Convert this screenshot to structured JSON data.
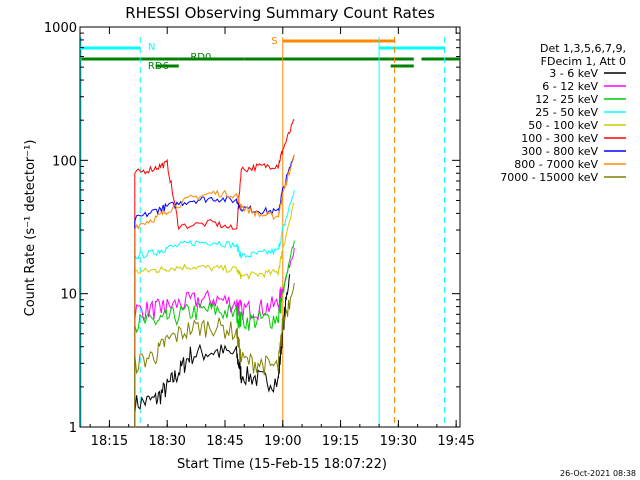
{
  "chart_data": {
    "type": "line",
    "title": "RHESSI Observing Summary Count Rates",
    "xlabel": "Start Time (15-Feb-15 18:07:22)",
    "ylabel": "Count Rate (s⁻¹ detector⁻¹)",
    "y_scale": "log",
    "ylim": [
      1,
      1000
    ],
    "xlim": [
      "18:07:22",
      "19:46:00"
    ],
    "x_tick_labels": [
      "18:15",
      "18:30",
      "18:45",
      "19:00",
      "19:15",
      "19:30",
      "19:45"
    ],
    "y_tick_labels": [
      "1",
      "10",
      "100",
      "1000"
    ],
    "timestamp": "26-Oct-2021 08:38",
    "legend": {
      "placement": "right",
      "header": [
        "Det 1,3,5,6,7,9,",
        "FDecim 1, Att 0"
      ],
      "entries": [
        {
          "label": "3 - 6 keV",
          "color": "#000000"
        },
        {
          "label": "6 - 12 keV",
          "color": "#ff00ff"
        },
        {
          "label": "12 - 25 keV",
          "color": "#00cc00"
        },
        {
          "label": "25 - 50 keV",
          "color": "#00ffff"
        },
        {
          "label": "50 - 100 keV",
          "color": "#cccc00"
        },
        {
          "label": "100 - 300 keV",
          "color": "#ff0000"
        },
        {
          "label": "300 - 800 keV",
          "color": "#0000ff"
        },
        {
          "label": "800 - 7000 keV",
          "color": "#ff8800"
        },
        {
          "label": "7000 - 15000 keV",
          "color": "#808000"
        }
      ]
    },
    "annotations": [
      {
        "label": "N",
        "color": "#00ffff"
      },
      {
        "label": "S",
        "color": "#ff8800"
      },
      {
        "label": "RD0",
        "color": "#008000"
      },
      {
        "label": "RD6",
        "color": "#008000"
      }
    ],
    "status_bars": {
      "night": {
        "color": "#00ffff",
        "segments": [
          [
            "18:07",
            "18:23"
          ],
          [
            "19:25",
            "19:42"
          ]
        ]
      },
      "saa": {
        "color": "#ff8800",
        "segments": [
          [
            "19:00",
            "19:29"
          ]
        ]
      },
      "data_gaps": {
        "color": "#008000",
        "segments": [
          [
            "18:07",
            "18:27"
          ],
          [
            "18:27",
            "18:33"
          ],
          [
            "18:33",
            "18:50"
          ],
          [
            "18:50",
            "19:28"
          ],
          [
            "19:28",
            "19:34"
          ],
          [
            "19:36",
            "19:46"
          ]
        ]
      }
    },
    "vlines": [
      {
        "time": "18:07",
        "color": "#00ffff",
        "style": "solid"
      },
      {
        "time": "18:23",
        "color": "#00ffff",
        "style": "dashed"
      },
      {
        "time": "19:00",
        "color": "#ff8800",
        "style": "solid"
      },
      {
        "time": "19:25",
        "color": "#00ffff",
        "style": "solid"
      },
      {
        "time": "19:29",
        "color": "#ff8800",
        "style": "dashed"
      },
      {
        "time": "19:42",
        "color": "#00ffff",
        "style": "dashed"
      }
    ],
    "series": [
      {
        "name": "3 - 6 keV",
        "color": "#000000",
        "values": [
          [
            18.36,
            1.5
          ],
          [
            18.45,
            1.6
          ],
          [
            18.5,
            2.0
          ],
          [
            18.55,
            2.6
          ],
          [
            18.6,
            3.5
          ],
          [
            18.7,
            3.7
          ],
          [
            18.8,
            3.5
          ],
          [
            18.82,
            2.5
          ],
          [
            18.9,
            2.3
          ],
          [
            18.98,
            2.2
          ],
          [
            19.0,
            5.5
          ],
          [
            19.03,
            14.0
          ]
        ]
      },
      {
        "name": "6 - 12 keV",
        "color": "#ff00ff",
        "values": [
          [
            18.36,
            7.5
          ],
          [
            18.45,
            7.7
          ],
          [
            18.5,
            8.0
          ],
          [
            18.6,
            8.8
          ],
          [
            18.7,
            9.2
          ],
          [
            18.8,
            8.5
          ],
          [
            18.82,
            7.6
          ],
          [
            18.9,
            7.8
          ],
          [
            18.98,
            8.3
          ],
          [
            19.0,
            11.0
          ],
          [
            19.05,
            22.0
          ]
        ]
      },
      {
        "name": "12 - 25 keV",
        "color": "#00cc00",
        "values": [
          [
            18.36,
            6.0
          ],
          [
            18.45,
            6.2
          ],
          [
            18.5,
            6.6
          ],
          [
            18.6,
            7.3
          ],
          [
            18.7,
            7.6
          ],
          [
            18.8,
            7.0
          ],
          [
            18.82,
            6.3
          ],
          [
            18.9,
            6.4
          ],
          [
            18.98,
            6.6
          ],
          [
            19.0,
            10.0
          ],
          [
            19.05,
            25.0
          ]
        ]
      },
      {
        "name": "25 - 50 keV",
        "color": "#00ffff",
        "values": [
          [
            18.36,
            19.0
          ],
          [
            18.45,
            20.5
          ],
          [
            18.5,
            22.0
          ],
          [
            18.6,
            24.0
          ],
          [
            18.7,
            24.5
          ],
          [
            18.8,
            23.0
          ],
          [
            18.82,
            19.0
          ],
          [
            18.9,
            20.0
          ],
          [
            18.98,
            21.0
          ],
          [
            19.0,
            30.0
          ],
          [
            19.05,
            60.0
          ]
        ]
      },
      {
        "name": "50 - 100 keV",
        "color": "#cccc00",
        "values": [
          [
            18.36,
            14.5
          ],
          [
            18.45,
            15.0
          ],
          [
            18.5,
            15.5
          ],
          [
            18.6,
            16.0
          ],
          [
            18.7,
            15.5
          ],
          [
            18.8,
            15.2
          ],
          [
            18.82,
            13.5
          ],
          [
            18.9,
            14.0
          ],
          [
            18.98,
            14.5
          ],
          [
            19.0,
            22.0
          ],
          [
            19.05,
            48.0
          ]
        ]
      },
      {
        "name": "100 - 300 keV",
        "color": "#ff0000",
        "values": [
          [
            18.36,
            80.0
          ],
          [
            18.45,
            88.0
          ],
          [
            18.5,
            95.0
          ],
          [
            18.55,
            32.0
          ],
          [
            18.7,
            34.0
          ],
          [
            18.8,
            30.0
          ],
          [
            18.82,
            85.0
          ],
          [
            18.9,
            90.0
          ],
          [
            18.98,
            92.0
          ],
          [
            19.0,
            120.0
          ],
          [
            19.05,
            200.0
          ]
        ]
      },
      {
        "name": "300 - 800 keV",
        "color": "#0000ff",
        "values": [
          [
            18.36,
            36.0
          ],
          [
            18.45,
            42.0
          ],
          [
            18.5,
            45.0
          ],
          [
            18.6,
            50.0
          ],
          [
            18.7,
            52.0
          ],
          [
            18.8,
            50.0
          ],
          [
            18.82,
            44.0
          ],
          [
            18.9,
            42.0
          ],
          [
            18.98,
            41.0
          ],
          [
            19.0,
            60.0
          ],
          [
            19.05,
            110.0
          ]
        ]
      },
      {
        "name": "800 - 7000 keV",
        "color": "#ff8800",
        "values": [
          [
            18.36,
            32.0
          ],
          [
            18.45,
            37.0
          ],
          [
            18.5,
            42.0
          ],
          [
            18.6,
            52.0
          ],
          [
            18.7,
            57.0
          ],
          [
            18.8,
            55.0
          ],
          [
            18.82,
            45.0
          ],
          [
            18.9,
            39.0
          ],
          [
            18.98,
            38.0
          ],
          [
            19.0,
            55.0
          ],
          [
            19.05,
            110.0
          ]
        ]
      },
      {
        "name": "7000 - 15000 keV",
        "color": "#808000",
        "values": [
          [
            18.36,
            3.0
          ],
          [
            18.45,
            3.5
          ],
          [
            18.5,
            4.5
          ],
          [
            18.6,
            5.5
          ],
          [
            18.7,
            5.8
          ],
          [
            18.8,
            5.2
          ],
          [
            18.82,
            3.2
          ],
          [
            18.9,
            3.0
          ],
          [
            18.98,
            2.8
          ],
          [
            19.0,
            6.0
          ],
          [
            19.05,
            12.0
          ]
        ]
      }
    ]
  }
}
